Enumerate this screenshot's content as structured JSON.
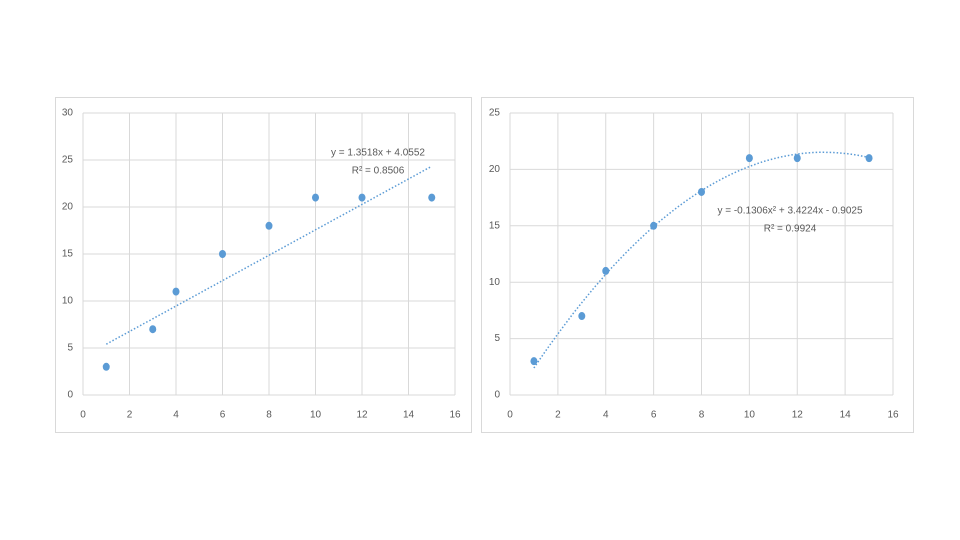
{
  "chart_data": [
    {
      "type": "scatter",
      "x": [
        1,
        3,
        4,
        6,
        8,
        10,
        12,
        15
      ],
      "values": [
        3,
        7,
        11,
        15,
        18,
        21,
        21,
        21
      ],
      "color": "#5b9bd5",
      "xlim": [
        0,
        16
      ],
      "xticks": [
        0,
        2,
        4,
        6,
        8,
        10,
        12,
        14,
        16
      ],
      "ylim": [
        0,
        30
      ],
      "yticks": [
        0,
        5,
        10,
        15,
        20,
        25,
        30
      ],
      "grid": true,
      "trendline": {
        "type": "linear",
        "coefficients": [
          4.0552,
          1.3518
        ],
        "equation": "y = 1.3518x + 4.0552",
        "r_squared": "R² = 0.8506"
      }
    },
    {
      "type": "scatter",
      "x": [
        1,
        3,
        4,
        6,
        8,
        10,
        12,
        15
      ],
      "values": [
        3,
        7,
        11,
        15,
        18,
        21,
        21,
        21
      ],
      "color": "#5b9bd5",
      "xlim": [
        0,
        16
      ],
      "xticks": [
        0,
        2,
        4,
        6,
        8,
        10,
        12,
        14,
        16
      ],
      "ylim": [
        0,
        25
      ],
      "yticks": [
        0,
        5,
        10,
        15,
        20,
        25
      ],
      "grid": true,
      "trendline": {
        "type": "polynomial",
        "coefficients": [
          -0.9025,
          3.4224,
          -0.1306
        ],
        "equation": "y = -0.1306x² + 3.4224x - 0.9025",
        "r_squared": "R² = 0.9924"
      }
    }
  ]
}
